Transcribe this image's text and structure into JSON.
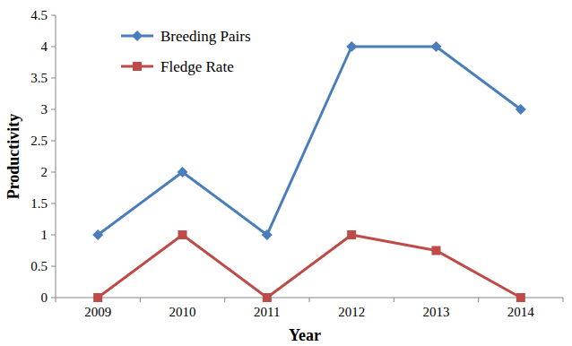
{
  "chart_data": {
    "type": "line",
    "x_label": "Year",
    "y_label": "Productivity",
    "categories": [
      "2009",
      "2010",
      "2011",
      "2012",
      "2013",
      "2014"
    ],
    "series": [
      {
        "name": "Breeding Pairs",
        "color": "#4a7ebb",
        "marker": "diamond",
        "values": [
          1,
          2,
          1,
          4,
          4,
          3
        ]
      },
      {
        "name": "Fledge Rate",
        "color": "#be4b48",
        "marker": "square",
        "values": [
          0,
          1,
          0,
          1,
          0.75,
          0
        ]
      }
    ],
    "ylim": [
      0,
      4.5
    ],
    "yticks": [
      0,
      0.5,
      1,
      1.5,
      2,
      2.5,
      3,
      3.5,
      4,
      4.5
    ],
    "grid": false,
    "legend": "upper left"
  }
}
